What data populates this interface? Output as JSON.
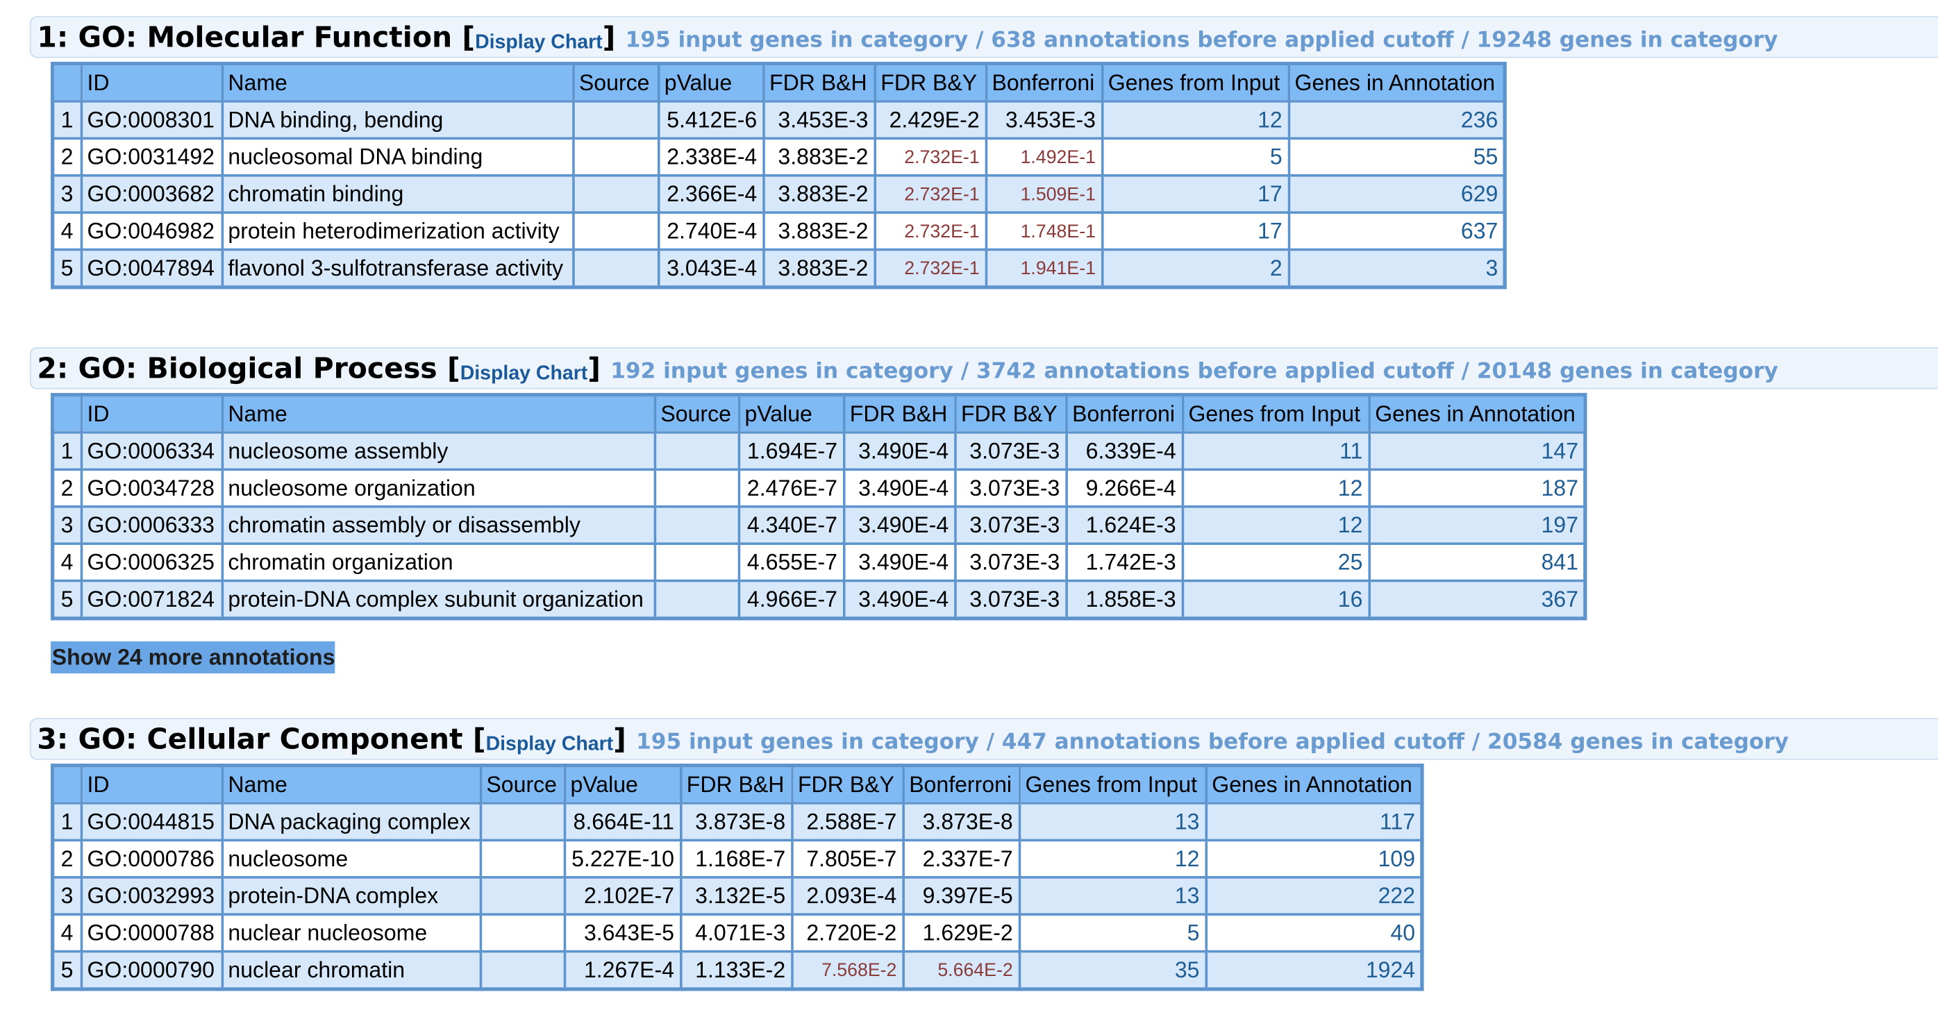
{
  "columns": {
    "num": "",
    "id": "ID",
    "name": "Name",
    "source": "Source",
    "pvalue": "pValue",
    "fdr_bh": "FDR B&H",
    "fdr_by": "FDR B&Y",
    "bonferroni": "Bonferroni",
    "genes_from_input": "Genes from Input",
    "genes_in_annotation": "Genes in Annotation"
  },
  "display_chart_label": "Display Chart",
  "colors": {
    "header_bg": "#7fbaf5",
    "row_odd_bg": "#d6e8fa",
    "border": "#5e94cd",
    "summary_text": "#6a9bd0",
    "link_text": "#1a5a9a",
    "count_text": "#1f5d95",
    "insignificant_text": "#8b3a3a"
  },
  "sections": [
    {
      "title": "1: GO: Molecular Function",
      "summary": "195 input genes in category / 638 annotations before applied cutoff / 19248 genes in category",
      "rows": [
        {
          "num": "1",
          "id": "GO:0008301",
          "name": "DNA binding, bending",
          "source": "",
          "pvalue": "5.412E-6",
          "fdr_bh": "3.453E-3",
          "fdr_by": "2.429E-2",
          "bonferroni": "3.453E-3",
          "genes_from_input": "12",
          "genes_in_annotation": "236"
        },
        {
          "num": "2",
          "id": "GO:0031492",
          "name": "nucleosomal DNA binding",
          "source": "",
          "pvalue": "2.338E-4",
          "fdr_bh": "3.883E-2",
          "fdr_by": "2.732E-1",
          "bonferroni": "1.492E-1",
          "genes_from_input": "5",
          "genes_in_annotation": "55"
        },
        {
          "num": "3",
          "id": "GO:0003682",
          "name": "chromatin binding",
          "source": "",
          "pvalue": "2.366E-4",
          "fdr_bh": "3.883E-2",
          "fdr_by": "2.732E-1",
          "bonferroni": "1.509E-1",
          "genes_from_input": "17",
          "genes_in_annotation": "629"
        },
        {
          "num": "4",
          "id": "GO:0046982",
          "name": "protein heterodimerization activity",
          "source": "",
          "pvalue": "2.740E-4",
          "fdr_bh": "3.883E-2",
          "fdr_by": "2.732E-1",
          "bonferroni": "1.748E-1",
          "genes_from_input": "17",
          "genes_in_annotation": "637"
        },
        {
          "num": "5",
          "id": "GO:0047894",
          "name": "flavonol 3-sulfotransferase activity",
          "source": "",
          "pvalue": "3.043E-4",
          "fdr_bh": "3.883E-2",
          "fdr_by": "2.732E-1",
          "bonferroni": "1.941E-1",
          "genes_from_input": "2",
          "genes_in_annotation": "3"
        }
      ]
    },
    {
      "title": "2: GO: Biological Process",
      "summary": "192 input genes in category / 3742 annotations before applied cutoff / 20148 genes in category",
      "rows": [
        {
          "num": "1",
          "id": "GO:0006334",
          "name": "nucleosome assembly",
          "source": "",
          "pvalue": "1.694E-7",
          "fdr_bh": "3.490E-4",
          "fdr_by": "3.073E-3",
          "bonferroni": "6.339E-4",
          "genes_from_input": "11",
          "genes_in_annotation": "147"
        },
        {
          "num": "2",
          "id": "GO:0034728",
          "name": "nucleosome organization",
          "source": "",
          "pvalue": "2.476E-7",
          "fdr_bh": "3.490E-4",
          "fdr_by": "3.073E-3",
          "bonferroni": "9.266E-4",
          "genes_from_input": "12",
          "genes_in_annotation": "187"
        },
        {
          "num": "3",
          "id": "GO:0006333",
          "name": "chromatin assembly or disassembly",
          "source": "",
          "pvalue": "4.340E-7",
          "fdr_bh": "3.490E-4",
          "fdr_by": "3.073E-3",
          "bonferroni": "1.624E-3",
          "genes_from_input": "12",
          "genes_in_annotation": "197"
        },
        {
          "num": "4",
          "id": "GO:0006325",
          "name": "chromatin organization",
          "source": "",
          "pvalue": "4.655E-7",
          "fdr_bh": "3.490E-4",
          "fdr_by": "3.073E-3",
          "bonferroni": "1.742E-3",
          "genes_from_input": "25",
          "genes_in_annotation": "841"
        },
        {
          "num": "5",
          "id": "GO:0071824",
          "name": "protein-DNA complex subunit organization",
          "source": "",
          "pvalue": "4.966E-7",
          "fdr_bh": "3.490E-4",
          "fdr_by": "3.073E-3",
          "bonferroni": "1.858E-3",
          "genes_from_input": "16",
          "genes_in_annotation": "367"
        }
      ],
      "more_label": "Show 24 more annotations"
    },
    {
      "title": "3: GO: Cellular Component",
      "summary": "195 input genes in category / 447 annotations before applied cutoff / 20584 genes in category",
      "rows": [
        {
          "num": "1",
          "id": "GO:0044815",
          "name": "DNA packaging complex",
          "source": "",
          "pvalue": "8.664E-11",
          "fdr_bh": "3.873E-8",
          "fdr_by": "2.588E-7",
          "bonferroni": "3.873E-8",
          "genes_from_input": "13",
          "genes_in_annotation": "117"
        },
        {
          "num": "2",
          "id": "GO:0000786",
          "name": "nucleosome",
          "source": "",
          "pvalue": "5.227E-10",
          "fdr_bh": "1.168E-7",
          "fdr_by": "7.805E-7",
          "bonferroni": "2.337E-7",
          "genes_from_input": "12",
          "genes_in_annotation": "109"
        },
        {
          "num": "3",
          "id": "GO:0032993",
          "name": "protein-DNA complex",
          "source": "",
          "pvalue": "2.102E-7",
          "fdr_bh": "3.132E-5",
          "fdr_by": "2.093E-4",
          "bonferroni": "9.397E-5",
          "genes_from_input": "13",
          "genes_in_annotation": "222"
        },
        {
          "num": "4",
          "id": "GO:0000788",
          "name": "nuclear nucleosome",
          "source": "",
          "pvalue": "3.643E-5",
          "fdr_bh": "4.071E-3",
          "fdr_by": "2.720E-2",
          "bonferroni": "1.629E-2",
          "genes_from_input": "5",
          "genes_in_annotation": "40"
        },
        {
          "num": "5",
          "id": "GO:0000790",
          "name": "nuclear chromatin",
          "source": "",
          "pvalue": "1.267E-4",
          "fdr_bh": "1.133E-2",
          "fdr_by": "7.568E-2",
          "bonferroni": "5.664E-2",
          "genes_from_input": "35",
          "genes_in_annotation": "1924"
        }
      ]
    }
  ]
}
